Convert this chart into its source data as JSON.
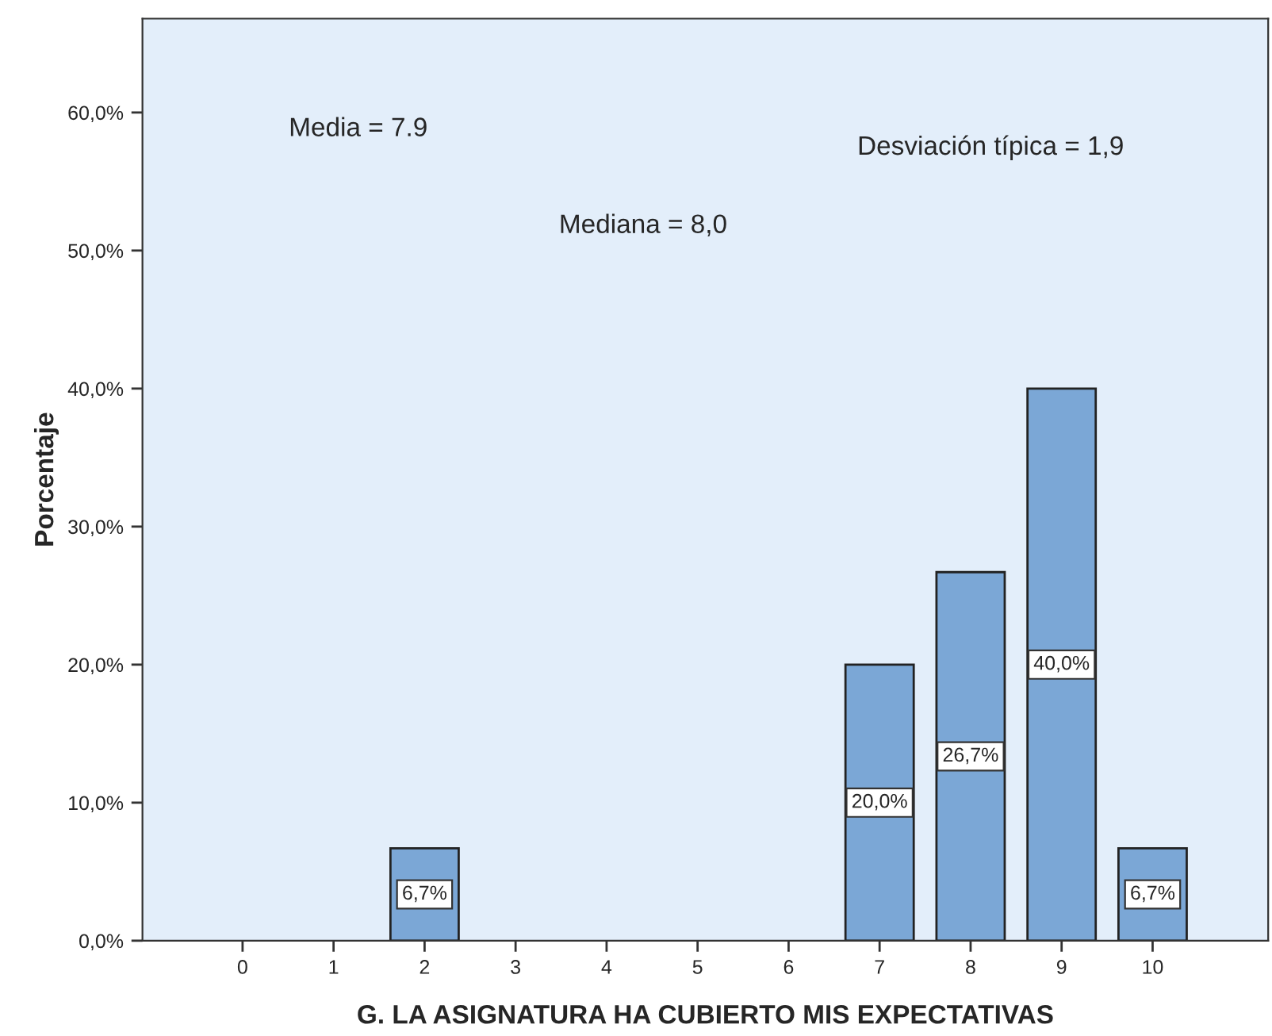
{
  "chart_data": {
    "type": "bar",
    "xlabel": "G. LA ASIGNATURA HA CUBIERTO MIS EXPECTATIVAS",
    "ylabel": "Porcentaje",
    "categories": [
      "0",
      "1",
      "2",
      "3",
      "4",
      "5",
      "6",
      "7",
      "8",
      "9",
      "10"
    ],
    "values": [
      null,
      null,
      6.7,
      null,
      null,
      null,
      null,
      20.0,
      26.7,
      40.0,
      6.7
    ],
    "value_labels": [
      null,
      null,
      "6,7%",
      null,
      null,
      null,
      null,
      "20,0%",
      "26,7%",
      "40,0%",
      "6,7%"
    ],
    "color": "#7ba7d6",
    "ylim": [
      0,
      66.8
    ],
    "yticks": [
      {
        "value": 0,
        "label": "0,0%"
      },
      {
        "value": 10,
        "label": "10,0%"
      },
      {
        "value": 20,
        "label": "20,0%"
      },
      {
        "value": 30,
        "label": "30,0%"
      },
      {
        "value": 40,
        "label": "40,0%"
      },
      {
        "value": 50,
        "label": "50,0%"
      },
      {
        "value": 60,
        "label": "60,0%"
      }
    ],
    "annotations": [
      "Media = 7.9",
      "Mediana = 8,0",
      "Desviación típica = 1,9"
    ],
    "grid": false,
    "legend": false
  }
}
